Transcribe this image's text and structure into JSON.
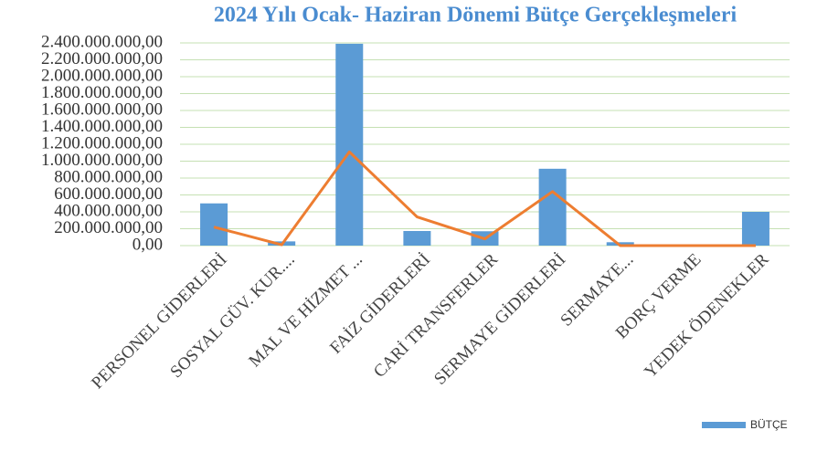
{
  "chart_data": {
    "type": "bar-line",
    "title": "2024 Yılı Ocak- Haziran Dönemi Bütçe Gerçekleşmeleri",
    "categories": [
      "PERSONEL GİDERLERİ",
      "SOSYAL GÜV. KUR....",
      "MAL VE HİZMET ...",
      "FAİZ GİDERLERİ",
      "CARİ TRANSFERLER",
      "SERMAYE GİDERLERİ",
      "SERMAYE...",
      "BORÇ VERME",
      "YEDEK ÖDENEKLER"
    ],
    "series": [
      {
        "name": "BÜTÇE",
        "type": "bar",
        "color": "#5b9bd5",
        "values": [
          500000000,
          50000000,
          2390000000,
          173000000,
          170000000,
          910000000,
          40000000,
          0,
          400000000
        ]
      },
      {
        "type": "line",
        "color": "#ed7d31",
        "values": [
          220000000,
          10000000,
          1110000000,
          340000000,
          80000000,
          640000000,
          0,
          0,
          0
        ]
      }
    ],
    "ylim": [
      0,
      2400000000
    ],
    "yticks": [
      {
        "value": 0,
        "label": "0,00"
      },
      {
        "value": 200000000,
        "label": "200.000.000,00"
      },
      {
        "value": 400000000,
        "label": "400.000.000,00"
      },
      {
        "value": 600000000,
        "label": "600.000.000,00"
      },
      {
        "value": 800000000,
        "label": "800.000.000,00"
      },
      {
        "value": 1000000000,
        "label": "1.000.000.000,00"
      },
      {
        "value": 1200000000,
        "label": "1.200.000.000,00"
      },
      {
        "value": 1400000000,
        "label": "1.400.000.000,00"
      },
      {
        "value": 1600000000,
        "label": "1.600.000.000,00"
      },
      {
        "value": 1800000000,
        "label": "1.800.000.000,00"
      },
      {
        "value": 2000000000,
        "label": "2.000.000.000,00"
      },
      {
        "value": 2200000000,
        "label": "2.200.000.000,00"
      },
      {
        "value": 2400000000,
        "label": "2.400.000.000,00"
      }
    ],
    "grid": true,
    "legend": "bottom-right"
  }
}
